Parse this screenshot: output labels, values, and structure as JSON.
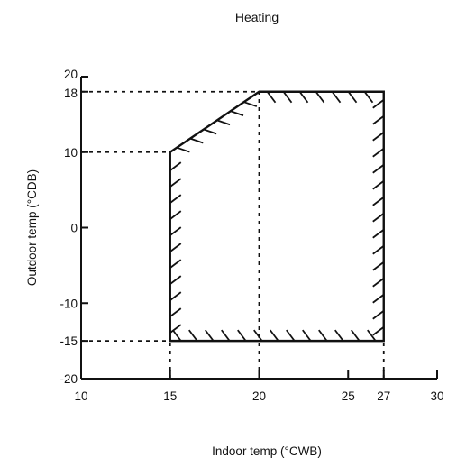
{
  "chart_data": {
    "type": "area",
    "title": "Heating",
    "xlabel": "Indoor temp (°CWB)",
    "ylabel": "Outdoor temp (°CDB)",
    "xlim": [
      10,
      30
    ],
    "ylim": [
      -20,
      20
    ],
    "x_ticks": [
      {
        "value": 10,
        "label": "10"
      },
      {
        "value": 15,
        "label": "15"
      },
      {
        "value": 20,
        "label": "20"
      },
      {
        "value": 25,
        "label": "25"
      },
      {
        "value": 27,
        "label": "27"
      },
      {
        "value": 30,
        "label": "30"
      }
    ],
    "y_ticks": [
      {
        "value": 20,
        "label": "20"
      },
      {
        "value": 18,
        "label": "18"
      },
      {
        "value": 10,
        "label": "10"
      },
      {
        "value": 0,
        "label": "0"
      },
      {
        "value": -10,
        "label": "-10"
      },
      {
        "value": -15,
        "label": "-15"
      },
      {
        "value": -20,
        "label": "-20"
      }
    ],
    "operating_range": {
      "polygon": [
        [
          15,
          -15
        ],
        [
          15,
          10
        ],
        [
          20,
          18
        ],
        [
          27,
          18
        ],
        [
          27,
          -15
        ]
      ],
      "hatched_edges": [
        [
          15,
          -15
        ],
        [
          15,
          10
        ],
        [
          20,
          18
        ],
        [
          27,
          18
        ],
        [
          27,
          -15
        ],
        [
          15,
          -15
        ]
      ]
    },
    "guide_lines": [
      {
        "from": [
          10,
          18
        ],
        "to": [
          20,
          18
        ]
      },
      {
        "from": [
          10,
          10
        ],
        "to": [
          15,
          10
        ]
      },
      {
        "from": [
          10,
          -15
        ],
        "to": [
          15,
          -15
        ]
      },
      {
        "from": [
          15,
          -20
        ],
        "to": [
          15,
          -15
        ]
      },
      {
        "from": [
          20,
          -20
        ],
        "to": [
          20,
          18
        ]
      },
      {
        "from": [
          27,
          -20
        ],
        "to": [
          27,
          -15
        ]
      }
    ],
    "grid": false,
    "colors": {
      "line": "#111111",
      "background": "#ffffff"
    }
  }
}
